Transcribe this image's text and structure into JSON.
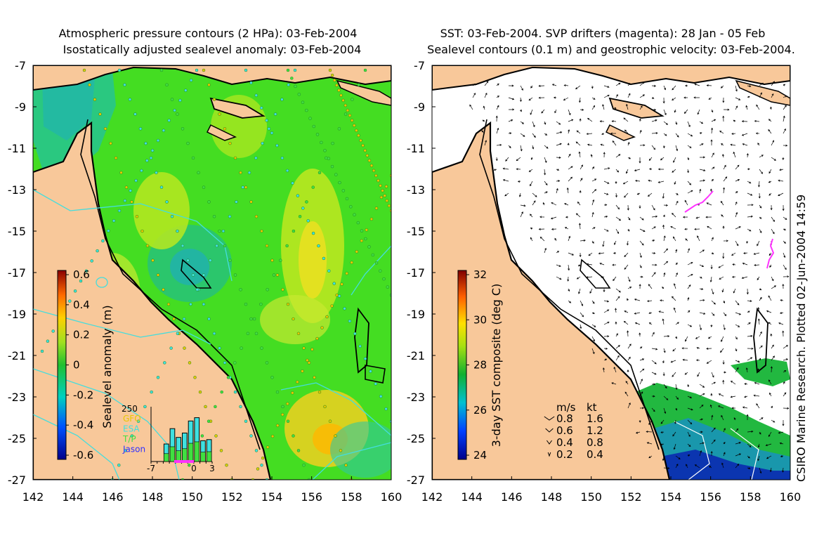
{
  "left_panel": {
    "title_line1": "Atmospheric pressure contours (2 HPa): 03-Feb-2004",
    "title_line2": "Isostatically adjusted sealevel anomaly: 03-Feb-2004",
    "colorbar": {
      "label": "Sealevel anomaly (m)",
      "ticks": [
        "0.6",
        "0.4",
        "0.2",
        "0",
        "-0.2",
        "-0.4",
        "-0.6"
      ]
    },
    "satellite_inset": {
      "ymax_label": "250",
      "legend": [
        {
          "name": "GFO",
          "color": "#e6c800"
        },
        {
          "name": "ESA",
          "color": "#3fe0e0"
        },
        {
          "name": "T/P",
          "color": "#40e040"
        },
        {
          "name": "Jason",
          "color": "#3030ff"
        }
      ],
      "x_ticks": [
        "-7",
        "0",
        "3"
      ],
      "bars": [
        {
          "day": -5,
          "value": 80
        },
        {
          "day": -4,
          "value": 150
        },
        {
          "day": -3,
          "value": 110
        },
        {
          "day": -2,
          "value": 130
        },
        {
          "day": -1,
          "value": 185
        },
        {
          "day": 0,
          "value": 200
        },
        {
          "day": 1,
          "value": 95
        },
        {
          "day": 2,
          "value": 100
        }
      ]
    }
  },
  "right_panel": {
    "title_line1": "SST: 03-Feb-2004. SVP drifters (magenta): 28 Jan - 05 Feb",
    "title_line2": "Sealevel contours (0.1 m) and geostrophic velocity: 03-Feb-2004.",
    "colorbar": {
      "label": "3-day SST composite (deg C)",
      "ticks": [
        "32",
        "30",
        "28",
        "26",
        "24"
      ]
    },
    "speed_legend": {
      "header_ms": "m/s",
      "header_kt": "kt",
      "rows": [
        {
          "ms": "0.8",
          "kt": "1.6"
        },
        {
          "ms": "0.6",
          "kt": "1.2"
        },
        {
          "ms": "0.4",
          "kt": "0.8"
        },
        {
          "ms": "0.2",
          "kt": "0.4"
        }
      ]
    },
    "credit": "CSIRO Marine Research. Plotted 02-Jun-2004 14:59"
  },
  "axes": {
    "x_ticks": [
      "142",
      "144",
      "146",
      "148",
      "150",
      "152",
      "154",
      "156",
      "158",
      "160"
    ],
    "y_ticks": [
      "-7",
      "-9",
      "-11",
      "-13",
      "-15",
      "-17",
      "-19",
      "-21",
      "-23",
      "-25",
      "-27"
    ]
  },
  "colors": {
    "land": "#f8c89a",
    "field_green": "#44dd22",
    "coast": "#000000",
    "drifter": "#ff33ff",
    "pressure_contour": "#44dddd"
  }
}
